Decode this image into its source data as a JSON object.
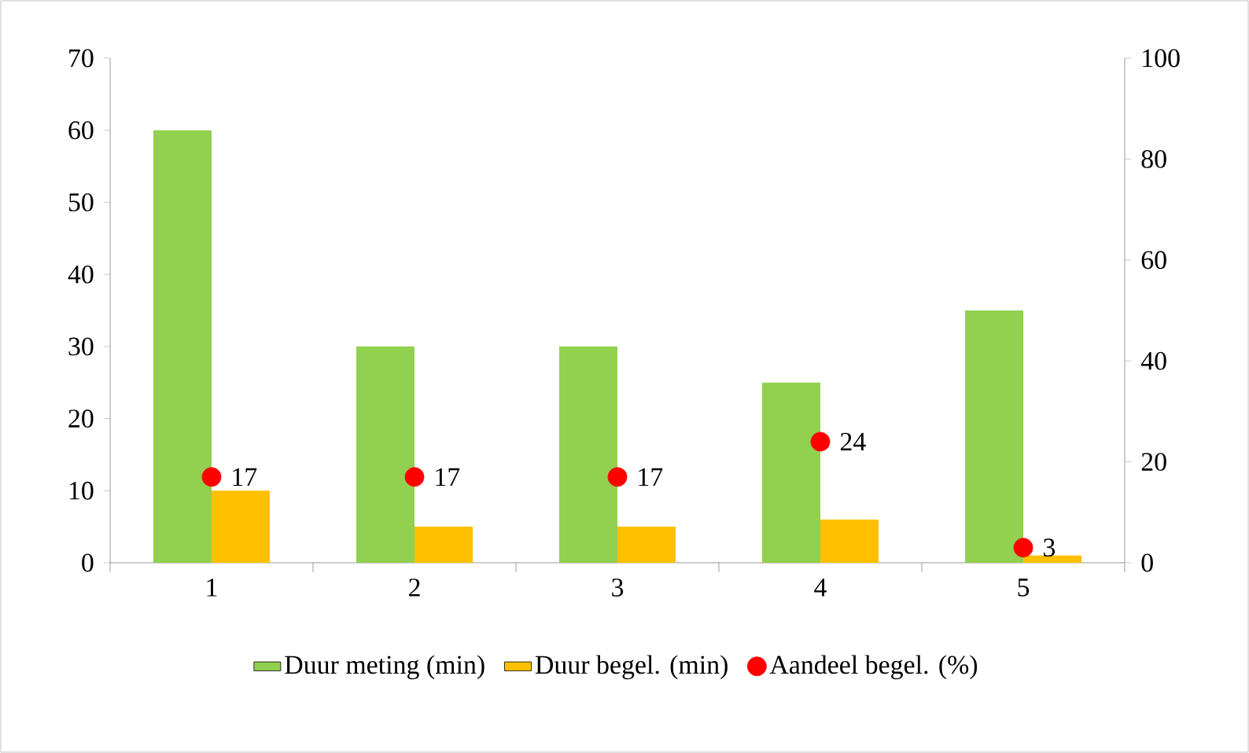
{
  "chart_data": {
    "type": "bar",
    "categories": [
      "1",
      "2",
      "3",
      "4",
      "5"
    ],
    "series": [
      {
        "name": "Duur meting (min)",
        "color": "#92d050",
        "values": [
          60,
          30,
          30,
          25,
          35
        ]
      },
      {
        "name": "Duur begel. (min)",
        "color": "#ffc000",
        "values": [
          10,
          5,
          5,
          6,
          1
        ]
      },
      {
        "name": "Aandeel begel. (%)",
        "type": "scatter",
        "axis": "y2",
        "color": "#ff0000",
        "values": [
          17,
          17,
          17,
          24,
          3
        ],
        "value_labels": [
          "17",
          "17",
          "17",
          "24",
          "3"
        ]
      }
    ],
    "ylim": [
      0,
      70
    ],
    "yticks": [
      0,
      10,
      20,
      30,
      40,
      50,
      60,
      70
    ],
    "y2lim": [
      0,
      100
    ],
    "y2ticks": [
      0,
      20,
      40,
      60,
      80,
      100
    ],
    "grid": false,
    "legend": "bottom"
  }
}
